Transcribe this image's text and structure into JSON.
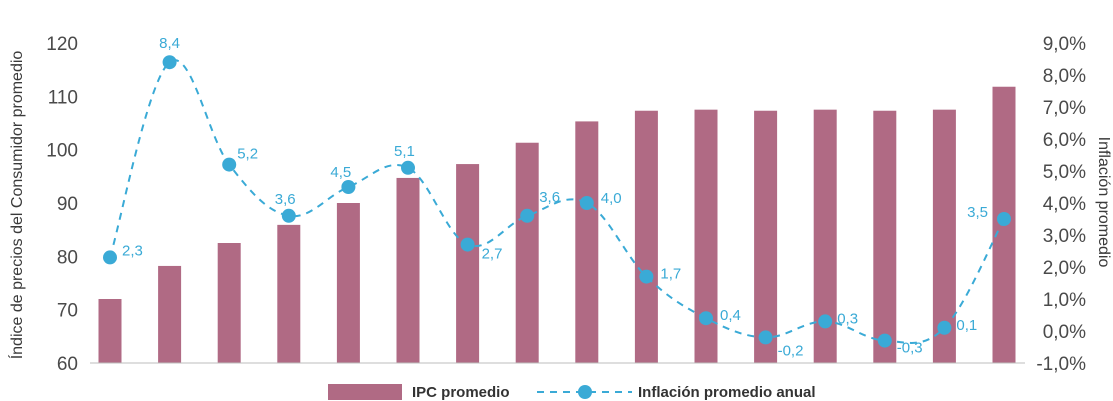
{
  "chart_data": {
    "type": "bar+line",
    "categories": [
      "",
      "",
      "",
      "",
      "",
      "",
      "",
      "",
      "",
      "",
      "",
      "",
      "",
      "",
      "",
      ""
    ],
    "series": [
      {
        "name": "IPC promedio",
        "type": "bar",
        "axis": "left",
        "color": "#b06a84",
        "values": [
          72.0,
          78.2,
          82.5,
          85.9,
          90.0,
          94.7,
          97.3,
          101.3,
          105.3,
          107.3,
          107.5,
          107.3,
          107.5,
          107.3,
          107.5,
          111.8
        ]
      },
      {
        "name": "Inflación promedio anual",
        "type": "line",
        "axis": "right",
        "color": "#3aaad6",
        "values": [
          2.3,
          8.4,
          5.2,
          3.6,
          4.5,
          5.1,
          2.7,
          3.6,
          4.0,
          1.7,
          0.4,
          -0.2,
          0.3,
          -0.3,
          0.1,
          3.5
        ],
        "labels": [
          "2,3",
          "8,4",
          "5,2",
          "3,6",
          "4,5",
          "5,1",
          "2,7",
          "3,6",
          "4,0",
          "1,7",
          "0,4",
          "-0,2",
          "0,3",
          "-0,3",
          "0,1",
          "3,5"
        ]
      }
    ],
    "y_left": {
      "label": "Índice de precios del Consumidor promedio",
      "ylim": [
        60,
        120
      ],
      "ticks": [
        "120",
        "110",
        "100",
        "90",
        "80",
        "70",
        "60"
      ],
      "tick_values": [
        120,
        110,
        100,
        90,
        80,
        70,
        60
      ]
    },
    "y_right": {
      "label": "Inflación promedio",
      "ylim": [
        -1.0,
        9.0
      ],
      "ticks": [
        "9,0%",
        "8,0%",
        "7,0%",
        "6,0%",
        "5,0%",
        "4,0%",
        "3,0%",
        "2,0%",
        "1,0%",
        "0,0%",
        "-1,0%"
      ],
      "tick_values": [
        9,
        8,
        7,
        6,
        5,
        4,
        3,
        2,
        1,
        0,
        -1
      ]
    },
    "grid": false,
    "legend": {
      "position": "bottom",
      "items": [
        "IPC promedio",
        "Inflación promedio anual"
      ]
    }
  }
}
